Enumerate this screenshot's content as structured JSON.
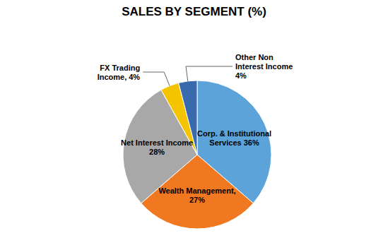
{
  "chart_data": {
    "type": "pie",
    "title": "SALES BY SEGMENT (%)",
    "categories": [
      "Corp. & Institutional\nServices 36%",
      "Wealth Management,\n27%",
      "Net Interest Income\n28%",
      "FX Trading\nIncome, 4%",
      "Other Non\nInterest Income\n4%"
    ],
    "values": [
      36,
      27,
      28,
      4,
      4
    ],
    "colors": [
      "#5BA3D9",
      "#F07820",
      "#A8A8A8",
      "#F5C400",
      "#3A6AAE"
    ]
  }
}
